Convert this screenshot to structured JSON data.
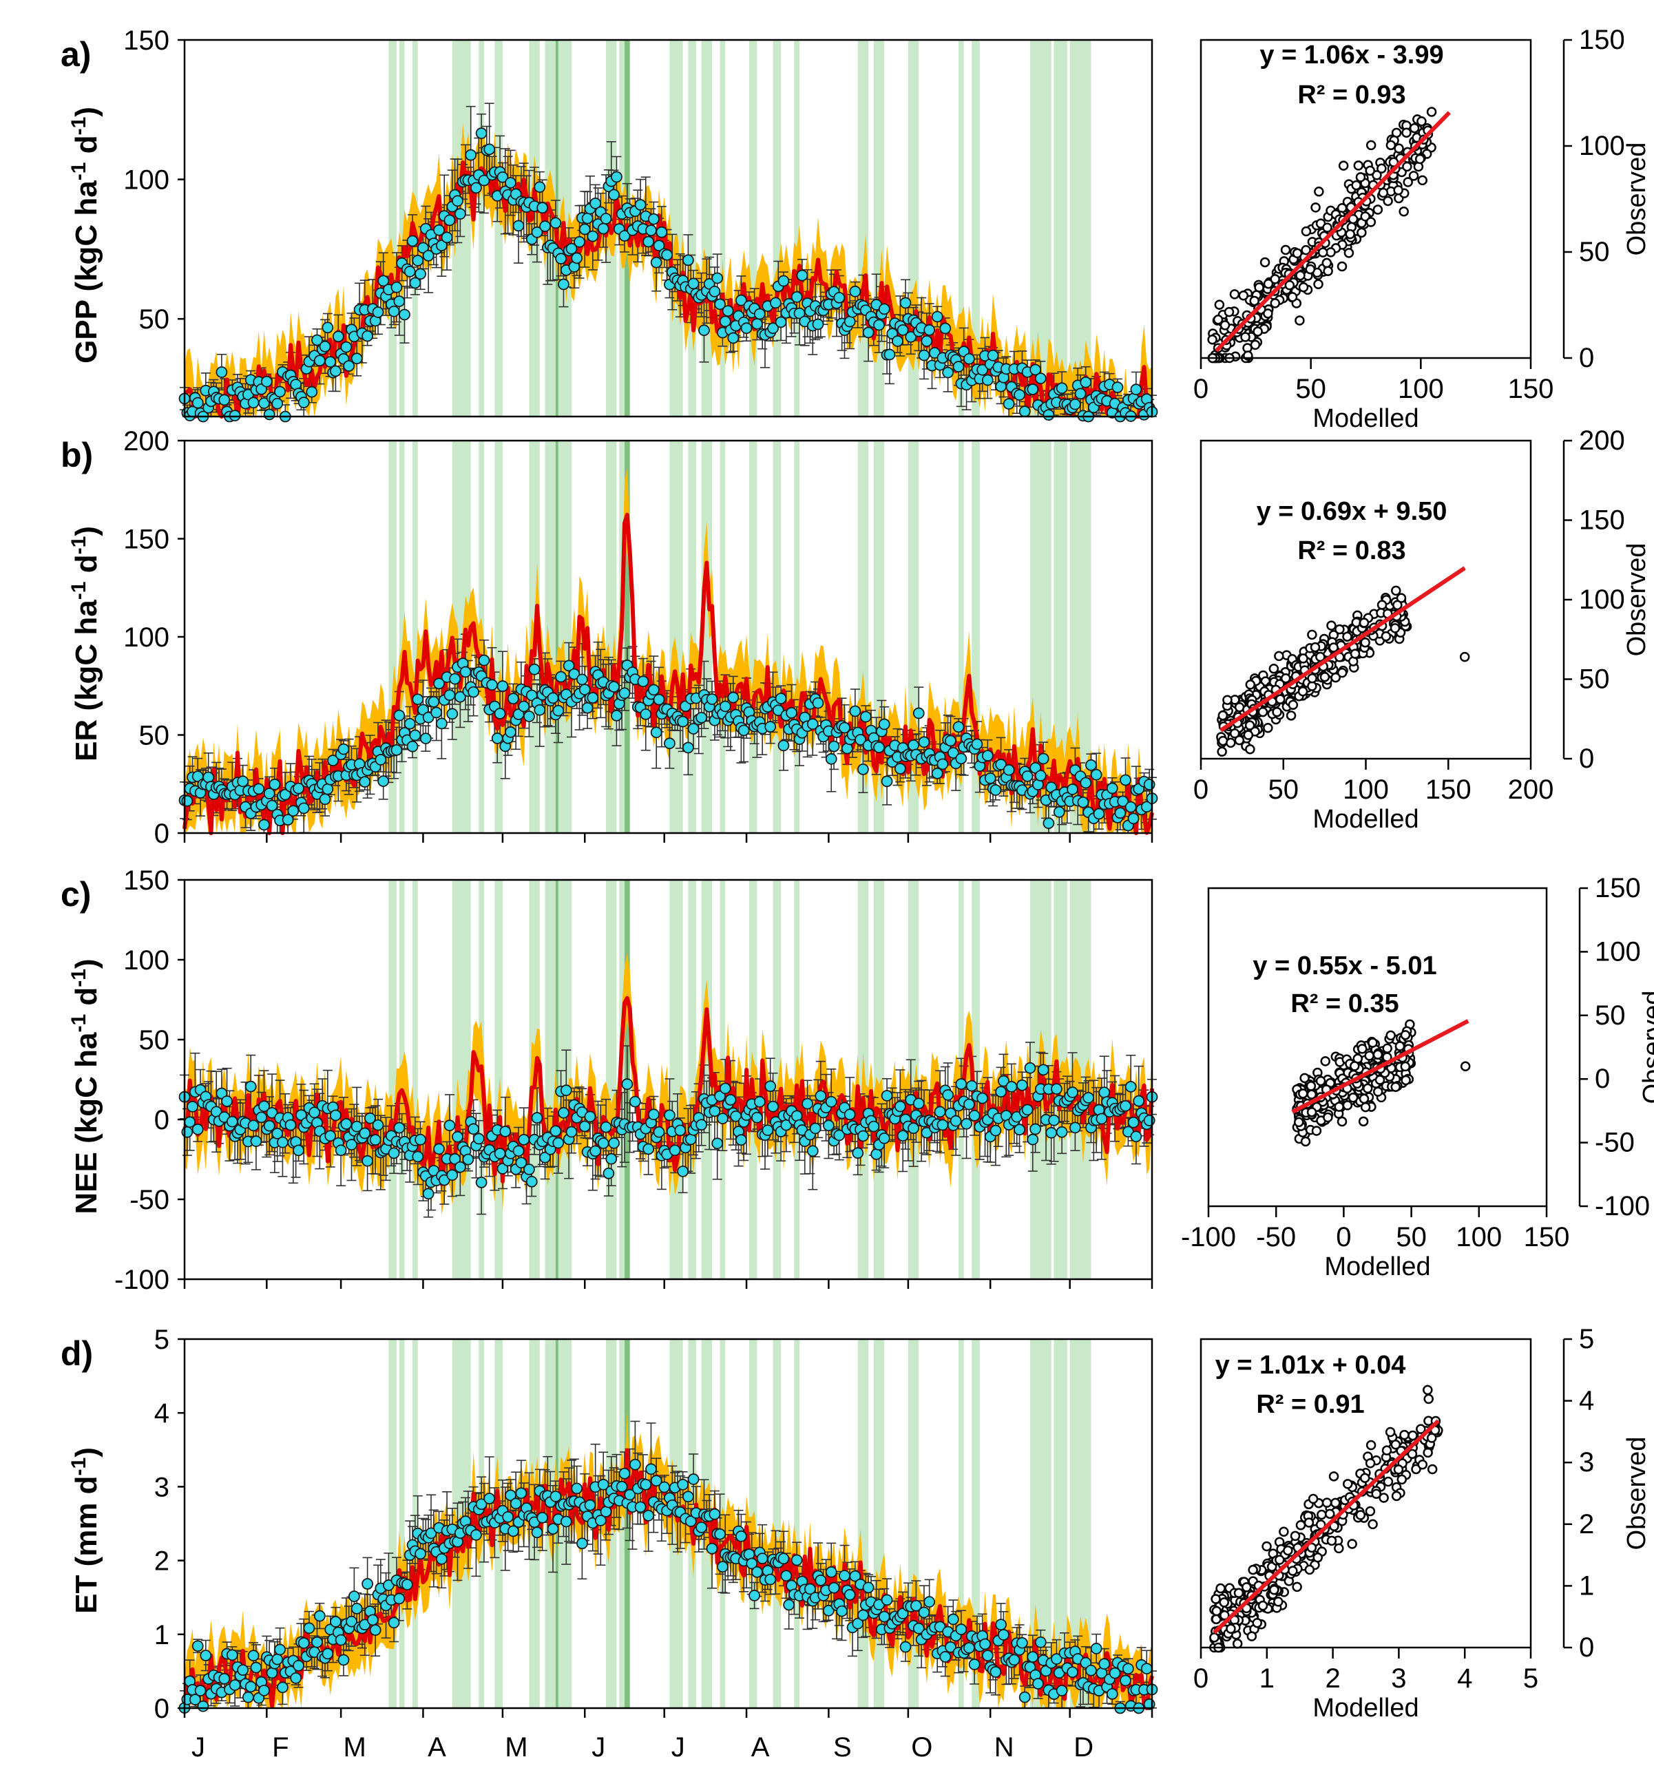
{
  "chart_data": [
    {
      "panel": "a)",
      "type": "line",
      "ylabel": "GPP (kgC ha-1 d-1)",
      "ylabel_parts": [
        "GPP (kgC ha",
        "-1",
        " d",
        "-1",
        ")"
      ],
      "ylim": [
        15,
        150
      ],
      "yticks": [
        50,
        100,
        150
      ],
      "months": [
        "J",
        "F",
        "M",
        "A",
        "M",
        "J",
        "J",
        "A",
        "S",
        "O",
        "N",
        "D"
      ],
      "x_ticks_shown": false,
      "series": [
        {
          "name": "Observed (daily, with error bars)",
          "color": "#33D6E6",
          "anchors": [
            [
              0,
              18
            ],
            [
              30,
              22
            ],
            [
              60,
              38
            ],
            [
              75,
              55
            ],
            [
              95,
              80
            ],
            [
              110,
              105
            ],
            [
              130,
              90
            ],
            [
              145,
              72
            ],
            [
              160,
              90
            ],
            [
              175,
              80
            ],
            [
              190,
              62
            ],
            [
              205,
              50
            ],
            [
              240,
              55
            ],
            [
              275,
              45
            ],
            [
              300,
              30
            ],
            [
              330,
              20
            ],
            [
              365,
              18
            ]
          ]
        },
        {
          "name": "Modelled",
          "color": "#E00000",
          "anchors": [
            [
              0,
              18
            ],
            [
              30,
              24
            ],
            [
              60,
              40
            ],
            [
              75,
              58
            ],
            [
              95,
              88
            ],
            [
              110,
              100
            ],
            [
              130,
              92
            ],
            [
              145,
              75
            ],
            [
              160,
              88
            ],
            [
              175,
              80
            ],
            [
              190,
              60
            ],
            [
              205,
              52
            ],
            [
              240,
              62
            ],
            [
              275,
              47
            ],
            [
              300,
              32
            ],
            [
              330,
              21
            ],
            [
              365,
              19
            ]
          ]
        }
      ],
      "scatter": {
        "xlim": [
          0,
          150
        ],
        "ylim": [
          0,
          150
        ],
        "xticks": [
          0,
          50,
          100,
          150
        ],
        "yticks": [
          0,
          50,
          100,
          150
        ],
        "xlabel": "Modelled",
        "ylabel": "Observed",
        "equation": "y = 1.06x - 3.99",
        "r2": "R² = 0.93",
        "slope": 1.06,
        "intercept": -3.99,
        "fit_x": [
          7,
          113
        ],
        "cloud_x": [
          5,
          105
        ],
        "scatter_noise": 10,
        "outliers": []
      }
    },
    {
      "panel": "b)",
      "type": "line",
      "ylabel": "ER (kgC ha-1 d-1)",
      "ylabel_parts": [
        "ER (kgC ha",
        "-1",
        " d",
        "-1",
        ")"
      ],
      "ylim": [
        0,
        200
      ],
      "yticks": [
        0,
        50,
        100,
        150,
        200
      ],
      "months": [
        "J",
        "F",
        "M",
        "A",
        "M",
        "J",
        "J",
        "A",
        "S",
        "O",
        "N",
        "D"
      ],
      "x_ticks_shown": true,
      "series": [
        {
          "name": "Observed",
          "color": "#33D6E6",
          "anchors": [
            [
              0,
              20
            ],
            [
              30,
              18
            ],
            [
              60,
              28
            ],
            [
              80,
              45
            ],
            [
              110,
              85
            ],
            [
              120,
              60
            ],
            [
              145,
              75
            ],
            [
              170,
              65
            ],
            [
              200,
              60
            ],
            [
              230,
              55
            ],
            [
              260,
              45
            ],
            [
              290,
              38
            ],
            [
              320,
              25
            ],
            [
              365,
              15
            ]
          ]
        },
        {
          "name": "Modelled",
          "color": "#E00000",
          "anchors": [
            [
              0,
              18
            ],
            [
              30,
              17
            ],
            [
              60,
              30
            ],
            [
              80,
              55
            ],
            [
              110,
              95
            ],
            [
              120,
              60
            ],
            [
              145,
              80
            ],
            [
              170,
              70
            ],
            [
              200,
              72
            ],
            [
              230,
              62
            ],
            [
              260,
              45
            ],
            [
              290,
              42
            ],
            [
              320,
              30
            ],
            [
              365,
              13
            ]
          ]
        }
      ],
      "spikes": [
        [
          83,
          28
        ],
        [
          90,
          25
        ],
        [
          110,
          15
        ],
        [
          133,
          35
        ],
        [
          150,
          30
        ],
        [
          167,
          95
        ],
        [
          197,
          55
        ],
        [
          240,
          15
        ],
        [
          296,
          35
        ]
      ],
      "scatter": {
        "xlim": [
          0,
          200
        ],
        "ylim": [
          0,
          200
        ],
        "xticks": [
          0,
          50,
          100,
          150,
          200
        ],
        "yticks": [
          0,
          50,
          100,
          150,
          200
        ],
        "xlabel": "Modelled",
        "ylabel": "Observed",
        "equation": "y = 0.69x + 9.50",
        "r2": "R² = 0.83",
        "slope": 0.69,
        "intercept": 9.5,
        "fit_x": [
          12,
          160
        ],
        "cloud_x": [
          12,
          125
        ],
        "scatter_noise": 9,
        "outliers": [
          [
            160,
            64
          ]
        ]
      }
    },
    {
      "panel": "c)",
      "type": "line",
      "ylabel": "NEE (kgC ha-1 d-1)",
      "ylabel_parts": [
        "NEE (kgC ha",
        "-1",
        " d",
        "-1",
        ")"
      ],
      "ylim": [
        -100,
        150
      ],
      "yticks": [
        -100,
        -50,
        0,
        50,
        100,
        150
      ],
      "months": [
        "J",
        "F",
        "M",
        "A",
        "M",
        "J",
        "J",
        "A",
        "S",
        "O",
        "N",
        "D"
      ],
      "x_ticks_shown": true,
      "series": [
        {
          "name": "Observed",
          "color": "#33D6E6",
          "anchors": [
            [
              0,
              8
            ],
            [
              30,
              0
            ],
            [
              60,
              -5
            ],
            [
              75,
              -15
            ],
            [
              95,
              -30
            ],
            [
              110,
              -15
            ],
            [
              130,
              -25
            ],
            [
              145,
              0
            ],
            [
              160,
              -15
            ],
            [
              175,
              -10
            ],
            [
              190,
              -15
            ],
            [
              200,
              5
            ],
            [
              230,
              0
            ],
            [
              260,
              -5
            ],
            [
              290,
              5
            ],
            [
              320,
              8
            ],
            [
              365,
              5
            ]
          ]
        },
        {
          "name": "Modelled",
          "color": "#E00000",
          "anchors": [
            [
              0,
              6
            ],
            [
              30,
              -2
            ],
            [
              60,
              -5
            ],
            [
              75,
              -10
            ],
            [
              95,
              -20
            ],
            [
              110,
              -10
            ],
            [
              130,
              -20
            ],
            [
              145,
              0
            ],
            [
              160,
              -10
            ],
            [
              175,
              -5
            ],
            [
              190,
              -10
            ],
            [
              200,
              10
            ],
            [
              230,
              5
            ],
            [
              260,
              0
            ],
            [
              290,
              5
            ],
            [
              320,
              10
            ],
            [
              365,
              5
            ]
          ]
        }
      ],
      "spikes": [
        [
          83,
          28
        ],
        [
          110,
          40
        ],
        [
          133,
          50
        ],
        [
          167,
          100
        ],
        [
          197,
          55
        ],
        [
          240,
          20
        ],
        [
          296,
          40
        ]
      ],
      "scatter": {
        "xlim": [
          -100,
          150
        ],
        "ylim": [
          -100,
          150
        ],
        "xticks": [
          -100,
          -50,
          0,
          50,
          100,
          150
        ],
        "yticks": [
          -100,
          -50,
          0,
          50,
          100,
          150
        ],
        "xlabel": "Modelled",
        "ylabel": "Observed",
        "equation": "y = 0.55x - 5.01",
        "r2": "R² = 0.35",
        "slope": 0.55,
        "intercept": -5.01,
        "fit_x": [
          -38,
          92
        ],
        "cloud_x": [
          -35,
          50
        ],
        "scatter_noise": 12,
        "outliers": [
          [
            90,
            10
          ]
        ]
      }
    },
    {
      "panel": "d)",
      "type": "line",
      "ylabel": "ET (mm d-1)",
      "ylabel_parts": [
        "ET (mm d",
        "-1",
        ")"
      ],
      "ylim": [
        0,
        5
      ],
      "yticks": [
        0,
        1,
        2,
        3,
        4,
        5
      ],
      "months": [
        "J",
        "F",
        "M",
        "A",
        "M",
        "J",
        "J",
        "A",
        "S",
        "O",
        "N",
        "D"
      ],
      "x_ticks_shown": true,
      "x_labels_shown": true,
      "series": [
        {
          "name": "Observed",
          "color": "#33D6E6",
          "anchors": [
            [
              0,
              0.4
            ],
            [
              30,
              0.5
            ],
            [
              60,
              1.0
            ],
            [
              75,
              1.5
            ],
            [
              95,
              2.3
            ],
            [
              120,
              2.6
            ],
            [
              150,
              2.7
            ],
            [
              170,
              3.0
            ],
            [
              190,
              2.7
            ],
            [
              210,
              2.0
            ],
            [
              240,
              1.6
            ],
            [
              270,
              1.2
            ],
            [
              300,
              0.8
            ],
            [
              330,
              0.5
            ],
            [
              365,
              0.3
            ]
          ]
        },
        {
          "name": "Modelled",
          "color": "#E00000",
          "anchors": [
            [
              0,
              0.35
            ],
            [
              30,
              0.5
            ],
            [
              60,
              0.9
            ],
            [
              75,
              1.3
            ],
            [
              95,
              2.0
            ],
            [
              120,
              2.6
            ],
            [
              150,
              2.7
            ],
            [
              170,
              3.0
            ],
            [
              190,
              2.6
            ],
            [
              210,
              2.1
            ],
            [
              240,
              1.8
            ],
            [
              270,
              1.2
            ],
            [
              300,
              0.8
            ],
            [
              330,
              0.5
            ],
            [
              365,
              0.3
            ]
          ]
        }
      ],
      "scatter": {
        "xlim": [
          0,
          5
        ],
        "ylim": [
          0,
          5
        ],
        "xticks": [
          0,
          1,
          2,
          3,
          4,
          5
        ],
        "yticks": [
          0,
          1,
          2,
          3,
          4,
          5
        ],
        "xlabel": "Modelled",
        "ylabel": "Observed",
        "equation": "y = 1.01x + 0.04",
        "r2": "R² = 0.91",
        "slope": 1.01,
        "intercept": 0.04,
        "fit_x": [
          0.2,
          3.6
        ],
        "cloud_x": [
          0.2,
          3.6
        ],
        "scatter_noise": 0.3,
        "outliers": []
      }
    }
  ],
  "shading": {
    "color": "#9fd69f",
    "dark_color": "#4fa34f",
    "bands": [
      [
        77,
        80
      ],
      [
        81,
        83
      ],
      [
        86,
        88
      ],
      [
        101,
        106
      ],
      [
        106,
        108
      ],
      [
        111,
        113
      ],
      [
        117,
        120
      ],
      [
        130,
        134
      ],
      [
        136,
        138
      ],
      [
        138,
        140
      ],
      [
        140,
        146
      ],
      [
        159,
        163
      ],
      [
        164,
        168
      ],
      [
        183,
        188
      ],
      [
        190,
        193
      ],
      [
        195,
        199
      ],
      [
        202,
        204
      ],
      [
        213,
        216
      ],
      [
        222,
        225
      ],
      [
        230,
        232
      ],
      [
        254,
        258
      ],
      [
        260,
        264
      ],
      [
        273,
        277
      ],
      [
        292,
        294
      ],
      [
        297,
        300
      ],
      [
        319,
        322
      ],
      [
        322,
        327
      ],
      [
        328,
        333
      ],
      [
        334,
        342
      ]
    ],
    "dark_bands": [
      [
        140,
        141
      ],
      [
        166,
        168
      ]
    ]
  },
  "colors": {
    "observed": "#33D6E6",
    "modelled": "#E00000",
    "uncertainty": "#FFB800",
    "errorbar": "#303030",
    "fit": "#E8191F"
  }
}
